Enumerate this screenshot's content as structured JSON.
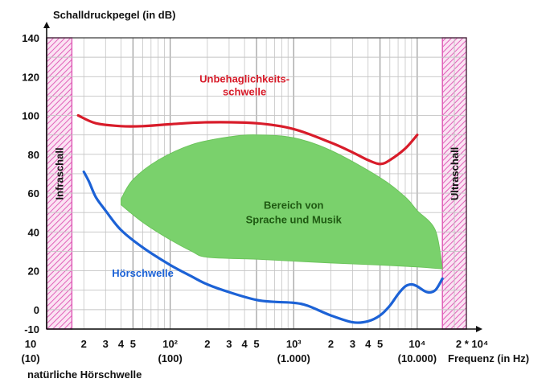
{
  "chart_data": {
    "type": "area",
    "ylabel": "Schalldruckpegel (in dB)",
    "xlabel": "Frequenz (in Hz)",
    "x_scale": "log",
    "xlim": [
      10,
      25000
    ],
    "ylim": [
      -10,
      140
    ],
    "y_ticks": [
      {
        "value": 140,
        "label": "140"
      },
      {
        "value": 120,
        "label": "120"
      },
      {
        "value": 100,
        "label": "100"
      },
      {
        "value": 80,
        "label": "80"
      },
      {
        "value": 60,
        "label": "60"
      },
      {
        "value": 40,
        "label": "40"
      },
      {
        "value": 20,
        "label": "20"
      },
      {
        "value": 0,
        "label": "0"
      },
      {
        "value": -10,
        "label": "-10"
      }
    ],
    "x_ticks": [
      {
        "value": 10,
        "label": "10"
      },
      {
        "value": 20,
        "label": "2"
      },
      {
        "value": 30,
        "label": "3"
      },
      {
        "value": 40,
        "label": "4"
      },
      {
        "value": 50,
        "label": "5"
      },
      {
        "value": 100,
        "label": "10²"
      },
      {
        "value": 200,
        "label": "2"
      },
      {
        "value": 300,
        "label": "3"
      },
      {
        "value": 400,
        "label": "4"
      },
      {
        "value": 500,
        "label": "5"
      },
      {
        "value": 1000,
        "label": "10³"
      },
      {
        "value": 2000,
        "label": "2"
      },
      {
        "value": 3000,
        "label": "3"
      },
      {
        "value": 4000,
        "label": "4"
      },
      {
        "value": 5000,
        "label": "5"
      },
      {
        "value": 10000,
        "label": "10⁴"
      },
      {
        "value": 20000,
        "label": "2 * 10⁴"
      }
    ],
    "x_sub_ticks": [
      {
        "value": 10,
        "label": "(10)"
      },
      {
        "value": 100,
        "label": "(100)"
      },
      {
        "value": 1000,
        "label": "(1.000)"
      },
      {
        "value": 10000,
        "label": "(10.000)"
      }
    ],
    "bands": [
      {
        "name": "Infraschall",
        "x_from": 10,
        "x_to": 16,
        "color": "#e060b8"
      },
      {
        "name": "Ultraschall",
        "x_from": 16000,
        "x_to": 25000,
        "color": "#e060b8"
      }
    ],
    "series": [
      {
        "name": "Unbehaglichkeits-schwelle",
        "name_lines": [
          "Unbehaglichkeits-",
          "schwelle"
        ],
        "color": "#d81c2a",
        "points": [
          [
            18,
            100
          ],
          [
            25,
            96
          ],
          [
            40,
            94.5
          ],
          [
            60,
            94.5
          ],
          [
            100,
            95.5
          ],
          [
            200,
            96.5
          ],
          [
            500,
            96
          ],
          [
            1000,
            93
          ],
          [
            2000,
            86
          ],
          [
            3000,
            81
          ],
          [
            4000,
            77
          ],
          [
            5000,
            75
          ],
          [
            6000,
            77
          ],
          [
            8000,
            83
          ],
          [
            10000,
            90
          ]
        ]
      },
      {
        "name": "Hörschwelle",
        "color": "#1c62d6",
        "points": [
          [
            20,
            71
          ],
          [
            22,
            66
          ],
          [
            25,
            58
          ],
          [
            30,
            51
          ],
          [
            40,
            41
          ],
          [
            60,
            32
          ],
          [
            100,
            23
          ],
          [
            150,
            17
          ],
          [
            200,
            13
          ],
          [
            300,
            9
          ],
          [
            500,
            5
          ],
          [
            700,
            4
          ],
          [
            1000,
            3.5
          ],
          [
            1300,
            2
          ],
          [
            2000,
            -3
          ],
          [
            3000,
            -6.5
          ],
          [
            4000,
            -6
          ],
          [
            5000,
            -3
          ],
          [
            6000,
            2
          ],
          [
            7000,
            8
          ],
          [
            8000,
            12
          ],
          [
            9000,
            13
          ],
          [
            10000,
            12
          ],
          [
            12000,
            9
          ],
          [
            14000,
            10
          ],
          [
            16000,
            16
          ]
        ]
      }
    ],
    "area": {
      "name_lines": [
        "Bereich von",
        "Sprache und Musik"
      ],
      "color": "#7ad16c",
      "label_x": 1000,
      "label_y": 52,
      "upper": [
        [
          40,
          57
        ],
        [
          50,
          67
        ],
        [
          80,
          77
        ],
        [
          150,
          85
        ],
        [
          300,
          89
        ],
        [
          500,
          90
        ],
        [
          1000,
          88.5
        ],
        [
          2000,
          82
        ],
        [
          5000,
          68
        ],
        [
          8000,
          58
        ],
        [
          10000,
          51
        ],
        [
          14000,
          41
        ],
        [
          16000,
          21
        ]
      ],
      "lower": [
        [
          16000,
          21
        ],
        [
          10000,
          22
        ],
        [
          5000,
          23
        ],
        [
          2000,
          24
        ],
        [
          1000,
          25
        ],
        [
          500,
          26
        ],
        [
          200,
          27
        ],
        [
          150,
          30
        ],
        [
          100,
          36
        ],
        [
          60,
          45
        ],
        [
          40,
          54
        ]
      ]
    },
    "annotations": [
      {
        "text": "natürliche Hörschwelle"
      }
    ]
  }
}
